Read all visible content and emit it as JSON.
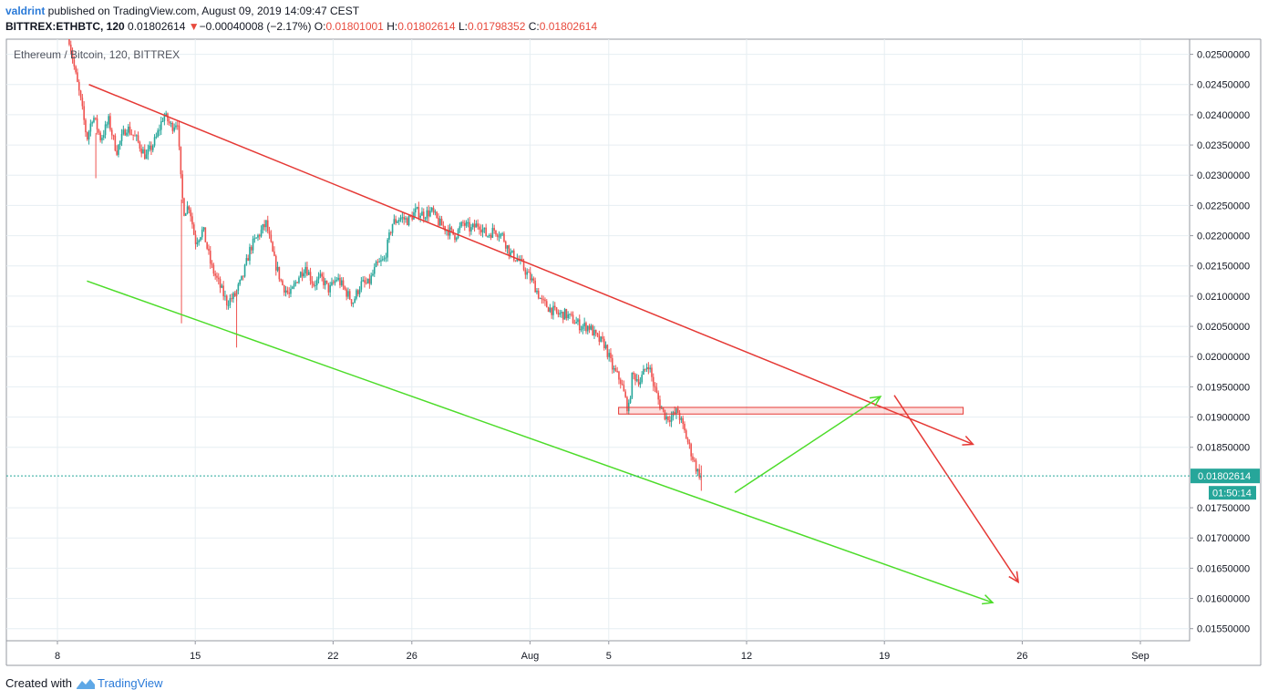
{
  "header": {
    "author": "valdrint",
    "published_text": " published on TradingView.com, August 09, 2019 14:09:47 CEST",
    "symbol": "BITTREX:ETHBTC, 120",
    "last": "0.01802614",
    "change_arrow": "▼",
    "change": "−0.00040008 (−2.17%)",
    "o_label": "O:",
    "o_value": "0.01801001",
    "h_label": "H:",
    "h_value": "0.01802614",
    "l_label": "L:",
    "l_value": "0.01798352",
    "c_label": "C:",
    "c_value": "0.01802614"
  },
  "legend_label": "Ethereum / Bitcoin, 120, BITTREX",
  "footer": {
    "created_with": "Created with",
    "brand": "TradingView",
    "logo_icon": "tradingview-logo-icon"
  },
  "chart_data": {
    "type": "candlestick",
    "y_axis_range": [
      0.0153,
      0.02525
    ],
    "y_ticks": [
      "0.02500000",
      "0.02450000",
      "0.02400000",
      "0.02350000",
      "0.02300000",
      "0.02250000",
      "0.02200000",
      "0.02150000",
      "0.02100000",
      "0.02050000",
      "0.02000000",
      "0.01950000",
      "0.01900000",
      "0.01850000",
      "0.01750000",
      "0.01700000",
      "0.01650000",
      "0.01600000",
      "0.01550000"
    ],
    "x_range_days": [
      7.15,
      37.4
    ],
    "x_ticks": [
      {
        "label": "8",
        "day": 8
      },
      {
        "label": "15",
        "day": 15
      },
      {
        "label": "22",
        "day": 22
      },
      {
        "label": "26",
        "day": 26
      },
      {
        "label": "Aug",
        "day": 32
      },
      {
        "label": "5",
        "day": 36
      },
      {
        "label": "12",
        "day": 43
      },
      {
        "label": "19",
        "day": 50
      },
      {
        "label": "26",
        "day": 57
      },
      {
        "label": "Sep",
        "day": 63
      }
    ],
    "last_price_label": "0.01802614",
    "last_price": 0.01802614,
    "countdown": "01:50:14",
    "price_path": [
      [
        8.6,
        0.02525
      ],
      [
        8.9,
        0.0247
      ],
      [
        9.2,
        0.0242
      ],
      [
        9.5,
        0.0236
      ],
      [
        9.8,
        0.024
      ],
      [
        10.2,
        0.0236
      ],
      [
        10.6,
        0.0239
      ],
      [
        11.0,
        0.0234
      ],
      [
        11.5,
        0.0238
      ],
      [
        12.0,
        0.0236
      ],
      [
        12.5,
        0.0233
      ],
      [
        13.0,
        0.0236
      ],
      [
        13.4,
        0.024
      ],
      [
        13.8,
        0.0238
      ],
      [
        14.1,
        0.0239
      ],
      [
        14.25,
        0.023
      ],
      [
        14.4,
        0.0224
      ],
      [
        14.7,
        0.0225
      ],
      [
        15.0,
        0.0219
      ],
      [
        15.4,
        0.0221
      ],
      [
        15.8,
        0.0215
      ],
      [
        16.2,
        0.0212
      ],
      [
        16.6,
        0.0209
      ],
      [
        17.0,
        0.021
      ],
      [
        17.4,
        0.0213
      ],
      [
        17.8,
        0.0218
      ],
      [
        18.2,
        0.022
      ],
      [
        18.6,
        0.0222
      ],
      [
        19.0,
        0.0216
      ],
      [
        19.4,
        0.0212
      ],
      [
        19.8,
        0.021
      ],
      [
        20.2,
        0.0213
      ],
      [
        20.6,
        0.0215
      ],
      [
        21.0,
        0.0212
      ],
      [
        21.4,
        0.0213
      ],
      [
        21.8,
        0.0211
      ],
      [
        22.2,
        0.0213
      ],
      [
        22.6,
        0.0211
      ],
      [
        23.0,
        0.0209
      ],
      [
        23.4,
        0.0212
      ],
      [
        23.8,
        0.0212
      ],
      [
        24.2,
        0.0215
      ],
      [
        24.6,
        0.0216
      ],
      [
        25.0,
        0.0222
      ],
      [
        25.4,
        0.0223
      ],
      [
        25.8,
        0.02225
      ],
      [
        26.2,
        0.0224
      ],
      [
        26.6,
        0.02235
      ],
      [
        27.0,
        0.0224
      ],
      [
        27.4,
        0.0222
      ],
      [
        27.8,
        0.0221
      ],
      [
        28.2,
        0.022
      ],
      [
        28.6,
        0.0222
      ],
      [
        29.0,
        0.0221
      ],
      [
        29.4,
        0.0222
      ],
      [
        29.8,
        0.022
      ],
      [
        30.2,
        0.0221
      ],
      [
        30.6,
        0.022
      ],
      [
        31.0,
        0.0217
      ],
      [
        31.4,
        0.0216
      ],
      [
        31.8,
        0.0214
      ],
      [
        32.2,
        0.0212
      ],
      [
        32.6,
        0.0209
      ],
      [
        33.0,
        0.0208
      ],
      [
        33.4,
        0.0207
      ],
      [
        33.8,
        0.0207
      ],
      [
        34.2,
        0.0206
      ],
      [
        34.6,
        0.0205
      ],
      [
        35.0,
        0.0205
      ],
      [
        35.4,
        0.0203
      ],
      [
        35.8,
        0.0202
      ],
      [
        36.2,
        0.0198
      ],
      [
        36.6,
        0.0196
      ],
      [
        37.0,
        0.0191
      ],
      [
        37.2,
        0.0197
      ],
      [
        37.6,
        0.0196
      ],
      [
        38.0,
        0.0199
      ],
      [
        38.3,
        0.0195
      ],
      [
        38.6,
        0.0192
      ],
      [
        38.9,
        0.019
      ],
      [
        39.2,
        0.019
      ],
      [
        39.5,
        0.0191
      ],
      [
        39.8,
        0.0188
      ],
      [
        40.1,
        0.0185
      ],
      [
        40.5,
        0.0181
      ],
      [
        40.7,
        0.01802614
      ]
    ],
    "drawings": [
      {
        "kind": "trendline",
        "color": "#e53935",
        "from": [
          9.6,
          0.0245
        ],
        "to": [
          54.5,
          0.01855
        ],
        "arrow": true
      },
      {
        "kind": "trendline",
        "color": "#4ddc2a",
        "from": [
          9.5,
          0.02125
        ],
        "to": [
          55.5,
          0.01593
        ],
        "arrow": true
      },
      {
        "kind": "rectangle",
        "color": "#e53935",
        "from": [
          36.5,
          0.01916
        ],
        "to": [
          54.0,
          0.01905
        ]
      },
      {
        "kind": "arrow",
        "color": "#4ddc2a",
        "from": [
          42.4,
          0.01775
        ],
        "to": [
          49.8,
          0.01934
        ]
      },
      {
        "kind": "arrow",
        "color": "#e53935",
        "from": [
          50.5,
          0.01936
        ],
        "to": [
          56.8,
          0.01627
        ]
      }
    ]
  }
}
